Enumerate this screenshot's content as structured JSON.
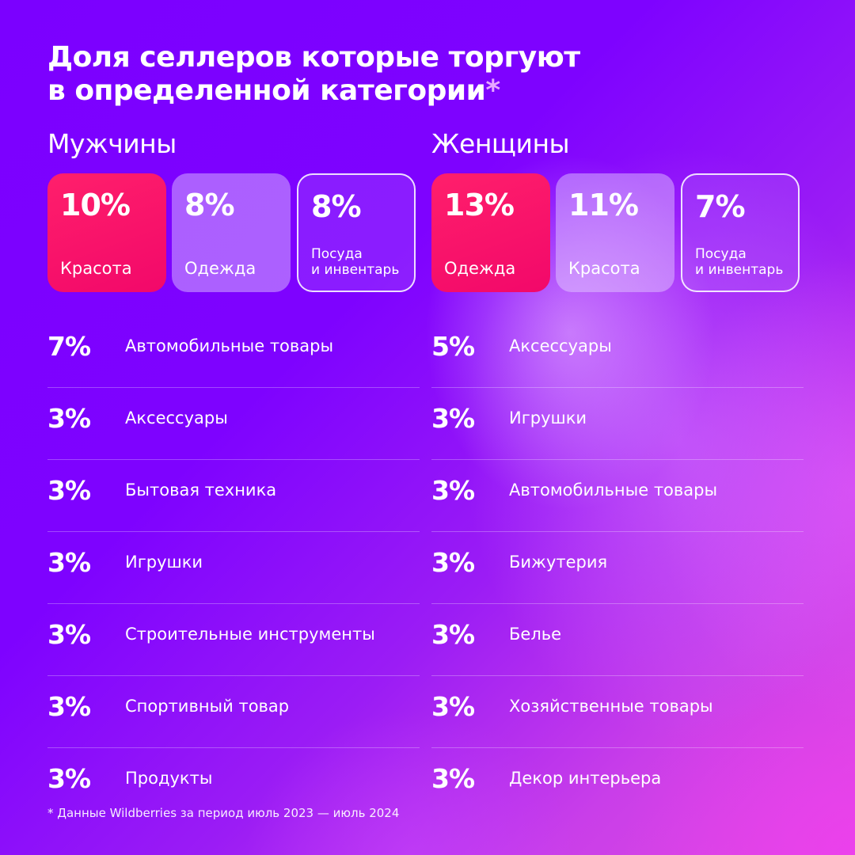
{
  "title": {
    "line1": "Доля селлеров которые торгуют",
    "line2": "в определенной категории",
    "asterisk": "*"
  },
  "columns": [
    {
      "heading": "Мужчины",
      "cards": [
        {
          "value": "10%",
          "label": "Красота",
          "style": "pink"
        },
        {
          "value": "8%",
          "label": "Одежда",
          "style": "soft"
        },
        {
          "value": "8%",
          "label": "Посуда\nи инвентарь",
          "style": "outline"
        }
      ],
      "rows": [
        {
          "value": "7%",
          "label": "Автомобильные товары"
        },
        {
          "value": "3%",
          "label": "Аксессуары"
        },
        {
          "value": "3%",
          "label": "Бытовая техника"
        },
        {
          "value": "3%",
          "label": "Игрушки"
        },
        {
          "value": "3%",
          "label": "Строительные инструменты"
        },
        {
          "value": "3%",
          "label": "Спортивный товар"
        },
        {
          "value": "3%",
          "label": "Продукты"
        }
      ]
    },
    {
      "heading": "Женщины",
      "cards": [
        {
          "value": "13%",
          "label": "Одежда",
          "style": "pink"
        },
        {
          "value": "11%",
          "label": "Красота",
          "style": "soft"
        },
        {
          "value": "7%",
          "label": "Посуда\nи инвентарь",
          "style": "outline"
        }
      ],
      "rows": [
        {
          "value": "5%",
          "label": "Аксессуары"
        },
        {
          "value": "3%",
          "label": "Игрушки"
        },
        {
          "value": "3%",
          "label": "Автомобильные товары"
        },
        {
          "value": "3%",
          "label": "Бижутерия"
        },
        {
          "value": "3%",
          "label": "Белье"
        },
        {
          "value": "3%",
          "label": "Хозяйственные товары"
        },
        {
          "value": "3%",
          "label": "Декор интерьера"
        }
      ]
    }
  ],
  "footnote": "* Данные Wildberries за период июль 2023 — июль 2024"
}
